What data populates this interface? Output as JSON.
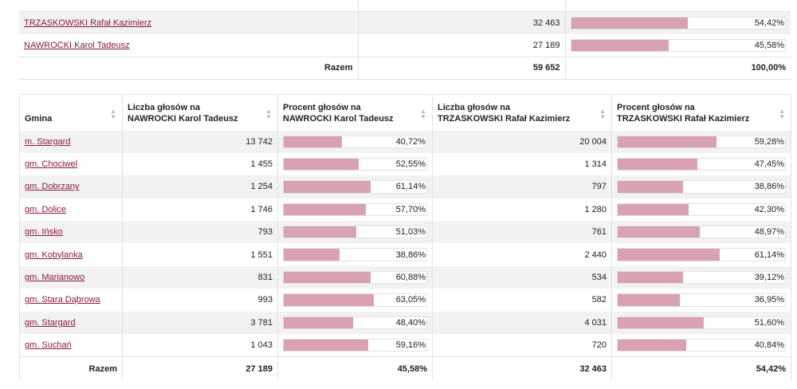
{
  "summary": {
    "rows": [
      {
        "candidate": "TRZASKOWSKI Rafał Kazimierz",
        "votes": "32 463",
        "percent_label": "54,42%",
        "percent": 54.42
      },
      {
        "candidate": "NAWROCKI Karol Tadeusz",
        "votes": "27 189",
        "percent_label": "45,58%",
        "percent": 45.58
      }
    ],
    "total_label": "Razem",
    "total_votes": "59 652",
    "total_percent": "100,00%"
  },
  "main": {
    "headers": {
      "gmina": "Gmina",
      "votes_nawrocki": [
        "Liczba głosów na",
        "NAWROCKI Karol Tadeusz"
      ],
      "pct_nawrocki": [
        "Procent głosów na",
        "NAWROCKI Karol Tadeusz"
      ],
      "votes_trzaskowski": [
        "Liczba głosów na",
        "TRZASKOWSKI Rafał Kazimierz"
      ],
      "pct_trzaskowski": [
        "Procent głosów na",
        "TRZASKOWSKI Rafał Kazimierz"
      ]
    },
    "rows": [
      {
        "gmina": "m. Stargard",
        "n_votes": "13 742",
        "n_pct_label": "40,72%",
        "n_pct": 40.72,
        "t_votes": "20 004",
        "t_pct_label": "59,28%",
        "t_pct": 59.28
      },
      {
        "gmina": "gm. Chociwel",
        "n_votes": "1 455",
        "n_pct_label": "52,55%",
        "n_pct": 52.55,
        "t_votes": "1 314",
        "t_pct_label": "47,45%",
        "t_pct": 47.45
      },
      {
        "gmina": "gm. Dobrzany",
        "n_votes": "1 254",
        "n_pct_label": "61,14%",
        "n_pct": 61.14,
        "t_votes": "797",
        "t_pct_label": "38,86%",
        "t_pct": 38.86
      },
      {
        "gmina": "gm. Dolice",
        "n_votes": "1 746",
        "n_pct_label": "57,70%",
        "n_pct": 57.7,
        "t_votes": "1 280",
        "t_pct_label": "42,30%",
        "t_pct": 42.3
      },
      {
        "gmina": "gm. Ińsko",
        "n_votes": "793",
        "n_pct_label": "51,03%",
        "n_pct": 51.03,
        "t_votes": "761",
        "t_pct_label": "48,97%",
        "t_pct": 48.97
      },
      {
        "gmina": "gm. Kobylanka",
        "n_votes": "1 551",
        "n_pct_label": "38,86%",
        "n_pct": 38.86,
        "t_votes": "2 440",
        "t_pct_label": "61,14%",
        "t_pct": 61.14
      },
      {
        "gmina": "gm. Marianowo",
        "n_votes": "831",
        "n_pct_label": "60,88%",
        "n_pct": 60.88,
        "t_votes": "534",
        "t_pct_label": "39,12%",
        "t_pct": 39.12
      },
      {
        "gmina": "gm. Stara Dąbrowa",
        "n_votes": "993",
        "n_pct_label": "63,05%",
        "n_pct": 63.05,
        "t_votes": "582",
        "t_pct_label": "36,95%",
        "t_pct": 36.95
      },
      {
        "gmina": "gm. Stargard",
        "n_votes": "3 781",
        "n_pct_label": "48,40%",
        "n_pct": 48.4,
        "t_votes": "4 031",
        "t_pct_label": "51,60%",
        "t_pct": 51.6
      },
      {
        "gmina": "gm. Suchań",
        "n_votes": "1 043",
        "n_pct_label": "59,16%",
        "n_pct": 59.16,
        "t_votes": "720",
        "t_pct_label": "40,84%",
        "t_pct": 40.84
      }
    ],
    "footer": {
      "label": "Razem",
      "n_votes": "27 189",
      "n_pct": "45,58%",
      "t_votes": "32 463",
      "t_pct": "54,42%"
    }
  },
  "colors": {
    "bar_fill": "#d8a2b0",
    "link": "#8b1a3a",
    "stripe": "#f2f2f2"
  },
  "icons": {
    "sort": "sort-arrows-icon"
  }
}
